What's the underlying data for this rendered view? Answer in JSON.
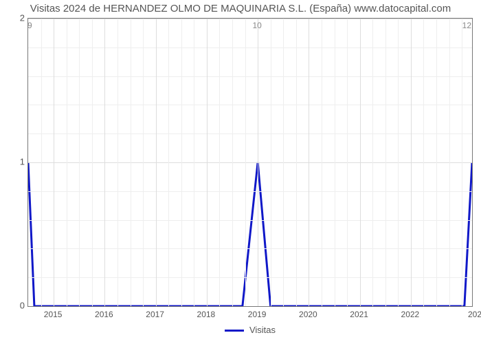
{
  "chart": {
    "type": "line",
    "title": "Visitas 2024 de HERNANDEZ OLMO DE MAQUINARIA S.L. (España) www.datocapital.com",
    "title_color": "#555555",
    "title_fontsize": 15,
    "background_color": "#ffffff",
    "plot_border_color": "#777777",
    "grid": {
      "major_color": "#dddddd",
      "minor_color": "#eeeeee",
      "y_major_step": 1,
      "y_minor_count": 4,
      "x_minor_count": 3
    },
    "x": {
      "min": 2014.5,
      "max": 2023.2,
      "ticks": [
        2015,
        2016,
        2017,
        2018,
        2019,
        2020,
        2021,
        2022
      ],
      "extra_tick_label": "202",
      "tick_fontsize": 12,
      "tick_color": "#555555"
    },
    "y": {
      "min": 0,
      "max": 2,
      "ticks": [
        0,
        1,
        2
      ],
      "tick_fontsize": 13,
      "tick_color": "#555555"
    },
    "top_value_labels": [
      {
        "x": 2014.5,
        "label": "9"
      },
      {
        "x": 2019.0,
        "label": "10"
      },
      {
        "x": 2023.2,
        "label": "12"
      }
    ],
    "series": [
      {
        "name": "Visitas",
        "color": "#1018c8",
        "line_width": 3,
        "points": [
          [
            2014.5,
            1.0
          ],
          [
            2014.62,
            0.0
          ],
          [
            2018.7,
            0.0
          ],
          [
            2019.0,
            1.0
          ],
          [
            2019.25,
            0.0
          ],
          [
            2023.05,
            0.0
          ],
          [
            2023.2,
            1.0
          ]
        ]
      }
    ],
    "legend": {
      "label": "Visitas",
      "color": "#1018c8"
    }
  }
}
